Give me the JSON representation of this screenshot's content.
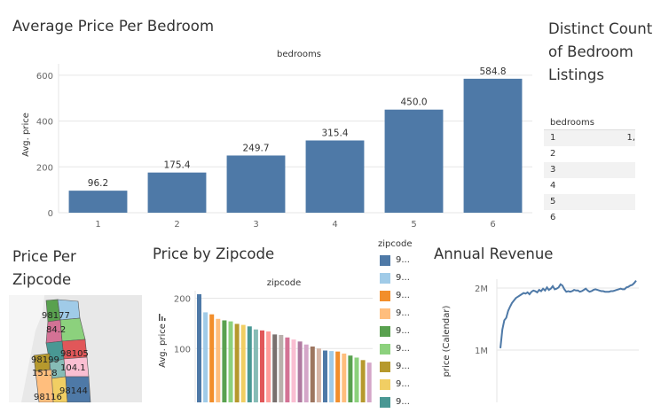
{
  "titles": {
    "avg_price": "Average Price Per Bedroom",
    "distinct": "Distinct Count of Bedroom Listings",
    "price_zip_map": "Price Per Zipcode",
    "price_zip": "Price by Zipcode",
    "annual_revenue": "Annual Revenue"
  },
  "colors": {
    "bar_blue": "#4e79a7",
    "gridline": "#e6e6e6",
    "stripe": "#f2f2f2"
  },
  "chart_data": [
    {
      "type": "bar",
      "title": "Average Price Per Bedroom",
      "header": "bedrooms",
      "ylabel": "Avg. price",
      "categories": [
        "1",
        "2",
        "3",
        "4",
        "5",
        "6"
      ],
      "values": [
        96.2,
        175.4,
        249.7,
        315.4,
        450.0,
        584.8
      ],
      "value_labels": [
        "96.2",
        "175.4",
        "249.7",
        "315.4",
        "450.0",
        "584.8"
      ],
      "yticks": [
        "0",
        "200",
        "400",
        "600"
      ],
      "ylim": [
        0,
        650
      ]
    },
    {
      "type": "bar",
      "title": "Price by Zipcode",
      "header": "zipcode",
      "ylabel": "Avg. price",
      "yticks": [
        "100",
        "200"
      ],
      "ylim": [
        0,
        215
      ],
      "values": [
        208,
        172,
        168,
        159,
        156,
        154,
        149,
        147,
        144,
        138,
        136,
        134,
        128,
        127,
        122,
        118,
        114,
        108,
        104,
        100,
        96,
        95,
        94,
        90,
        86,
        82,
        77,
        72
      ],
      "colors": [
        "#4e79a7",
        "#a0cbe8",
        "#f28e2b",
        "#ffbe7d",
        "#59a14f",
        "#8cd17d",
        "#b6992d",
        "#f1ce63",
        "#499894",
        "#86bcb6",
        "#e15759",
        "#ff9d9a",
        "#79706e",
        "#bab0ac",
        "#d37295",
        "#fabfd2",
        "#b07aa1",
        "#d4a6c8",
        "#9d7660",
        "#d7b5a6",
        "#4e79a7",
        "#a0cbe8",
        "#f28e2b",
        "#ffbe7d",
        "#59a14f",
        "#8cd17d",
        "#b6992d",
        "#d4a6c8"
      ]
    },
    {
      "type": "line",
      "title": "Annual Revenue",
      "ylabel": "price (Calendar)",
      "yticks": [
        "1M",
        "2M"
      ],
      "values": [
        1.03,
        1.33,
        1.48,
        1.52,
        1.63,
        1.7,
        1.76,
        1.8,
        1.84,
        1.86,
        1.88,
        1.9,
        1.92,
        1.91,
        1.93,
        1.9,
        1.94,
        1.96,
        1.95,
        1.93,
        1.97,
        1.95,
        1.99,
        1.96,
        2.01,
        1.97,
        1.99,
        2.03,
        1.98,
        1.99,
        2.01,
        2.06,
        2.04,
        1.98,
        1.94,
        1.95,
        1.94,
        1.95,
        1.97,
        1.96,
        1.96,
        1.94,
        1.95,
        1.97,
        1.99,
        1.96,
        1.94,
        1.95,
        1.97,
        1.98,
        1.97,
        1.96,
        1.95,
        1.95,
        1.94,
        1.94,
        1.94,
        1.95,
        1.95,
        1.96,
        1.97,
        1.98,
        1.99,
        1.98,
        1.98,
        2.01,
        2.02,
        2.04,
        2.05,
        2.08,
        2.12
      ]
    }
  ],
  "distinct_table": {
    "header": "bedrooms",
    "rows": [
      {
        "key": "1",
        "val": "1,"
      },
      {
        "key": "2",
        "val": ""
      },
      {
        "key": "3",
        "val": ""
      },
      {
        "key": "4",
        "val": ""
      },
      {
        "key": "5",
        "val": ""
      },
      {
        "key": "6",
        "val": ""
      }
    ]
  },
  "zip_legend": {
    "header": "zipcode",
    "items": [
      {
        "label": "9...",
        "color": "#4e79a7"
      },
      {
        "label": "9...",
        "color": "#a0cbe8"
      },
      {
        "label": "9...",
        "color": "#f28e2b"
      },
      {
        "label": "9...",
        "color": "#ffbe7d"
      },
      {
        "label": "9...",
        "color": "#59a14f"
      },
      {
        "label": "9...",
        "color": "#8cd17d"
      },
      {
        "label": "9...",
        "color": "#b6992d"
      },
      {
        "label": "9...",
        "color": "#f1ce63"
      },
      {
        "label": "9...",
        "color": "#499894"
      }
    ]
  },
  "map_labels": [
    "98177",
    "84.2",
    "98105",
    "98199",
    "104.1",
    "151.8",
    "98144",
    "98116"
  ]
}
